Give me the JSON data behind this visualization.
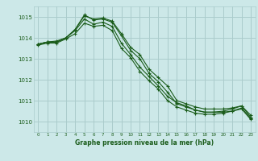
{
  "title": "Graphe pression niveau de la mer (hPa)",
  "background_color": "#cce8e8",
  "grid_color": "#aacccc",
  "line_color": "#1a5c1a",
  "xlim": [
    -0.5,
    23.5
  ],
  "ylim": [
    1009.5,
    1015.5
  ],
  "yticks": [
    1010,
    1011,
    1012,
    1013,
    1014,
    1015
  ],
  "xticks": [
    0,
    1,
    2,
    3,
    4,
    5,
    6,
    7,
    8,
    9,
    10,
    11,
    12,
    13,
    14,
    15,
    16,
    17,
    18,
    19,
    20,
    21,
    22,
    23
  ],
  "series": [
    [
      1013.7,
      1013.8,
      1013.8,
      1014.0,
      1014.4,
      1015.05,
      1014.9,
      1014.95,
      1014.8,
      1014.2,
      1013.55,
      1013.2,
      1012.5,
      1012.1,
      1011.7,
      1011.0,
      1010.85,
      1010.7,
      1010.6,
      1010.6,
      1010.6,
      1010.65,
      1010.75,
      1010.3
    ],
    [
      1013.7,
      1013.8,
      1013.8,
      1014.0,
      1014.4,
      1015.1,
      1014.85,
      1014.9,
      1014.75,
      1014.1,
      1013.4,
      1013.0,
      1012.3,
      1011.9,
      1011.4,
      1010.85,
      1010.7,
      1010.55,
      1010.45,
      1010.45,
      1010.45,
      1010.5,
      1010.65,
      1010.15
    ],
    [
      1013.7,
      1013.8,
      1013.85,
      1014.0,
      1014.35,
      1014.9,
      1014.65,
      1014.75,
      1014.55,
      1013.75,
      1013.2,
      1012.6,
      1012.15,
      1011.7,
      1011.2,
      1010.9,
      1010.75,
      1010.55,
      1010.45,
      1010.45,
      1010.5,
      1010.6,
      1010.75,
      1010.2
    ],
    [
      1013.65,
      1013.75,
      1013.75,
      1013.95,
      1014.2,
      1014.7,
      1014.55,
      1014.6,
      1014.35,
      1013.5,
      1013.05,
      1012.4,
      1011.95,
      1011.55,
      1011.0,
      1010.7,
      1010.55,
      1010.4,
      1010.35,
      1010.35,
      1010.4,
      1010.5,
      1010.6,
      1010.1
    ]
  ]
}
